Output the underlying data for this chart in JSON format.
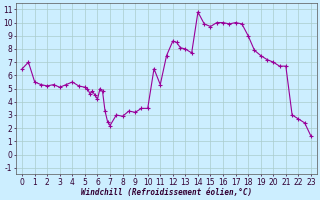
{
  "x": [
    0,
    0.5,
    1,
    1.5,
    2,
    2.5,
    3,
    3.5,
    4,
    4.5,
    5,
    5.2,
    5.4,
    5.6,
    5.8,
    6,
    6.2,
    6.4,
    6.6,
    6.8,
    7,
    7.5,
    8,
    8.5,
    9,
    9.5,
    10,
    10.5,
    11,
    11.5,
    12,
    12.3,
    12.6,
    13,
    13.5,
    14,
    14.5,
    15,
    15.5,
    16,
    16.5,
    17,
    17.5,
    18,
    18.5,
    19,
    19.5,
    20,
    20.5,
    21,
    21.5,
    22,
    22.5,
    23
  ],
  "y": [
    6.5,
    7.0,
    5.5,
    5.3,
    5.2,
    5.3,
    5.1,
    5.3,
    5.5,
    5.2,
    5.1,
    5.0,
    4.6,
    4.8,
    4.5,
    4.2,
    5.0,
    4.8,
    3.3,
    2.5,
    2.2,
    3.0,
    2.9,
    3.3,
    3.2,
    3.5,
    3.5,
    6.5,
    5.3,
    7.5,
    8.6,
    8.5,
    8.1,
    8.0,
    7.7,
    10.8,
    9.9,
    9.7,
    10.0,
    10.0,
    9.9,
    10.0,
    9.9,
    9.0,
    7.9,
    7.5,
    7.2,
    7.0,
    6.7,
    6.7,
    3.0,
    2.7,
    2.4,
    1.4
  ],
  "line_color": "#990099",
  "marker_color": "#990099",
  "bg_color": "#cceeff",
  "grid_color": "#aacccc",
  "xlabel": "Windchill (Refroidissement éolien,°C)",
  "ylim": [
    -1.5,
    11.5
  ],
  "xlim": [
    -0.5,
    23.5
  ],
  "yticks": [
    -1,
    0,
    1,
    2,
    3,
    4,
    5,
    6,
    7,
    8,
    9,
    10,
    11
  ],
  "xticks": [
    0,
    1,
    2,
    3,
    4,
    5,
    6,
    7,
    8,
    9,
    10,
    11,
    12,
    13,
    14,
    15,
    16,
    17,
    18,
    19,
    20,
    21,
    22,
    23
  ]
}
